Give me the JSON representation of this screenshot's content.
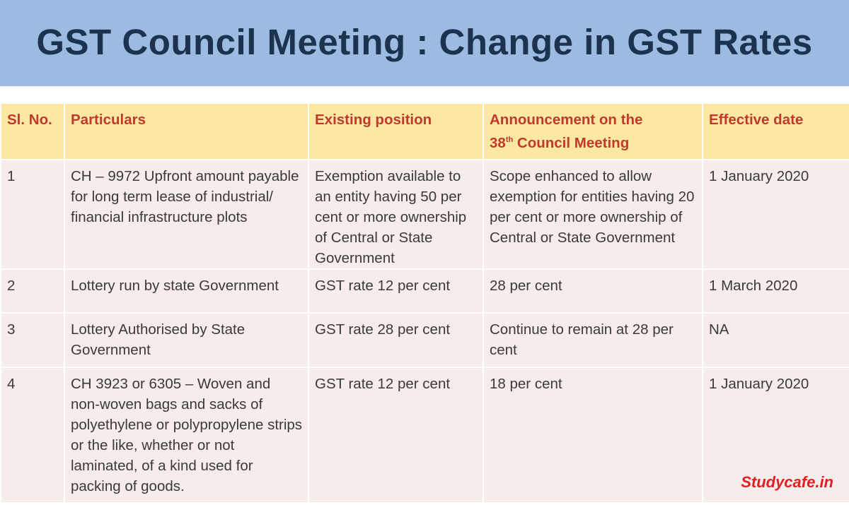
{
  "header": {
    "title": "GST Council Meeting : Change in GST Rates"
  },
  "table": {
    "columns": [
      "Sl. No.",
      "Particulars",
      "Existing position",
      {
        "line1": "Announcement on the",
        "ordinal": "38",
        "suffix": "th",
        "line2": "Council Meeting"
      },
      "Effective date"
    ],
    "rows": [
      [
        "1",
        "CH – 9972 Upfront amount payable for long term lease of industrial/ financial infrastructure plots",
        "Exemption available to an entity having 50 per cent or more ownership of Central or State Government",
        "Scope enhanced to allow exemption for entities having 20 per cent or more ownership of Central or State Government",
        "1 January 2020"
      ],
      [
        "2",
        "Lottery run by state Government",
        "GST rate 12 per cent",
        "28 per cent",
        "1 March 2020"
      ],
      [
        "3",
        "Lottery Authorised by State Government",
        "GST rate 28 per cent",
        "Continue to remain at 28 per cent",
        "NA"
      ],
      [
        "4",
        "CH 3923 or 6305 – Woven and non-woven bags and sacks of polyethylene or polypropylene strips or the like, whether or not laminated, of a kind used for packing of goods.",
        "GST rate 12 per cent",
        "18 per cent",
        "1 January 2020"
      ]
    ]
  },
  "watermark": "Studycafe.in"
}
